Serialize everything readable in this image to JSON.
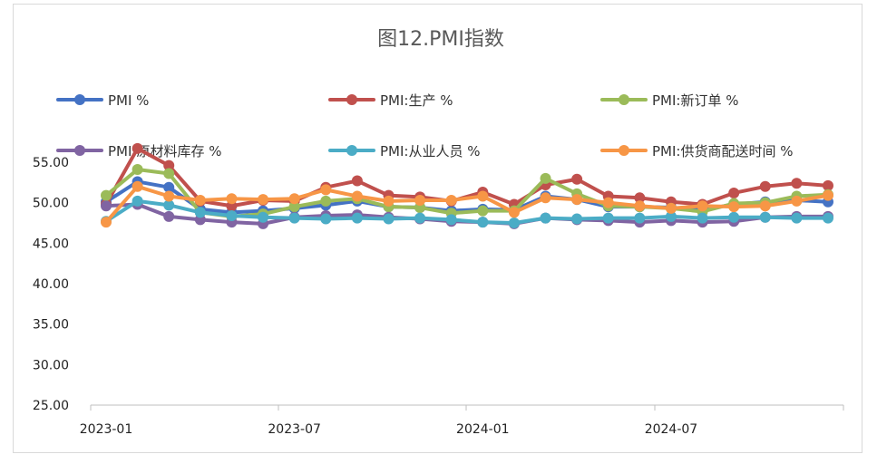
{
  "chart_data": {
    "type": "line",
    "title": "图12.PMI指数",
    "x_tick_labels": [
      "2023-01",
      "2023-07",
      "2024-01",
      "2024-07"
    ],
    "x": [
      "2023-01",
      "2023-02",
      "2023-03",
      "2023-04",
      "2023-05",
      "2023-06",
      "2023-07",
      "2023-08",
      "2023-09",
      "2023-10",
      "2023-11",
      "2023-12",
      "2024-01",
      "2024-02",
      "2024-03",
      "2024-04",
      "2024-05",
      "2024-06",
      "2024-07",
      "2024-08",
      "2024-09",
      "2024-10",
      "2024-11",
      "2024-12"
    ],
    "ylim": [
      25,
      55
    ],
    "y_ticks": [
      "25.00",
      "30.00",
      "35.00",
      "40.00",
      "45.00",
      "50.00",
      "55.00"
    ],
    "grid": false,
    "legend_position": "top",
    "series": [
      {
        "name": "PMI %",
        "color": "#4472C4",
        "values": [
          50.1,
          52.6,
          51.9,
          49.2,
          48.8,
          49.0,
          49.3,
          49.7,
          50.2,
          49.5,
          49.4,
          49.0,
          49.2,
          49.1,
          50.8,
          50.4,
          49.5,
          49.5,
          49.4,
          49.1,
          49.8,
          50.1,
          50.3,
          50.1
        ]
      },
      {
        "name": "PMI:生产 %",
        "color": "#C0504D",
        "values": [
          49.8,
          56.7,
          54.6,
          50.2,
          49.6,
          50.3,
          50.2,
          51.9,
          52.7,
          50.9,
          50.7,
          50.2,
          51.3,
          49.8,
          52.2,
          52.9,
          50.8,
          50.6,
          50.1,
          49.8,
          51.2,
          52.0,
          52.4,
          52.1
        ]
      },
      {
        "name": "PMI:新订单 %",
        "color": "#9BBB59",
        "values": [
          50.9,
          54.1,
          53.6,
          48.8,
          48.3,
          48.6,
          49.5,
          50.2,
          50.5,
          49.5,
          49.4,
          48.7,
          49.0,
          49.0,
          53.0,
          51.1,
          49.6,
          49.5,
          49.3,
          48.9,
          49.9,
          50.0,
          50.8,
          51.0
        ]
      },
      {
        "name": "PMI:原材料库存 %",
        "color": "#8064A2",
        "values": [
          49.6,
          49.8,
          48.3,
          47.9,
          47.6,
          47.4,
          48.2,
          48.4,
          48.5,
          48.2,
          48.0,
          47.7,
          47.6,
          47.4,
          48.1,
          47.9,
          47.8,
          47.6,
          47.8,
          47.6,
          47.7,
          48.2,
          48.3,
          48.3
        ]
      },
      {
        "name": "PMI:从业人员 %",
        "color": "#4BACC6",
        "values": [
          47.7,
          50.2,
          49.7,
          48.8,
          48.4,
          48.2,
          48.1,
          48.0,
          48.1,
          48.0,
          48.1,
          47.9,
          47.6,
          47.5,
          48.1,
          48.0,
          48.1,
          48.1,
          48.3,
          48.1,
          48.2,
          48.2,
          48.1,
          48.1
        ]
      },
      {
        "name": "PMI:供货商配送时间 %",
        "color": "#F79646",
        "values": [
          47.6,
          52.0,
          50.8,
          50.3,
          50.5,
          50.4,
          50.5,
          51.6,
          50.8,
          50.2,
          50.3,
          50.3,
          50.8,
          48.8,
          50.6,
          50.4,
          50.0,
          49.6,
          49.3,
          49.6,
          49.5,
          49.6,
          50.2,
          50.9
        ]
      }
    ]
  }
}
